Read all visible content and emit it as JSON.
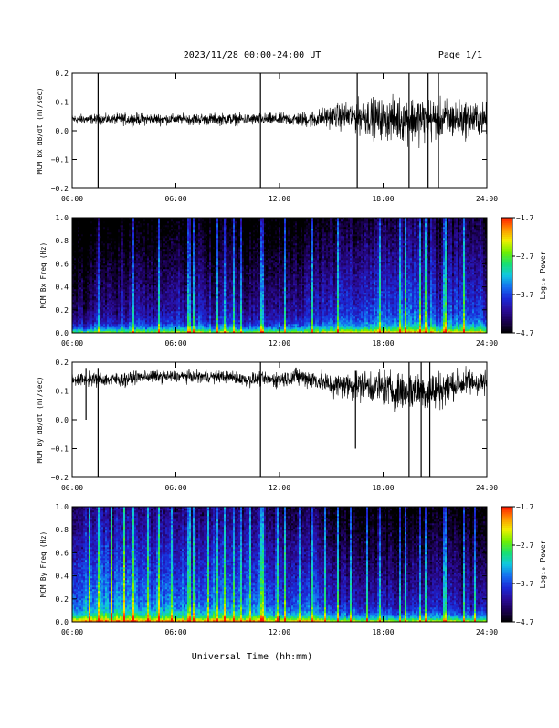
{
  "header": {
    "date_range": "2023/11/28  00:00-24:00 UT",
    "page": "Page 1/1"
  },
  "colorbar_label": "Log₁₀ Power",
  "colorscale": [
    "#000000",
    "#1a0050",
    "#2a0c9a",
    "#1a2ad8",
    "#1470f0",
    "#10c8e0",
    "#18e070",
    "#70f000",
    "#f0f000",
    "#ff9000",
    "#ff1800"
  ],
  "trace_color": "#000000",
  "xlabel": "Universal Time (hh:mm)",
  "chart_data": [
    {
      "type": "line",
      "ylabel": "MCM Bx dB/dt (nT/sec)",
      "xlim": [
        0,
        24
      ],
      "ylim": [
        -0.2,
        0.2
      ],
      "xticks": [
        "00:00",
        "06:00",
        "12:00",
        "18:00",
        "24:00"
      ],
      "yticks": [
        "−0.2",
        "−0.1",
        "0.0",
        "0.1",
        "0.2"
      ],
      "series": [
        {
          "x": [
            0,
            1,
            2,
            3,
            4,
            5,
            6,
            7,
            8,
            9,
            10,
            11,
            12,
            13,
            14,
            15,
            16,
            17,
            18,
            19,
            20,
            21,
            22,
            23,
            24
          ],
          "mean": [
            0.04,
            0.04,
            0.04,
            0.04,
            0.04,
            0.04,
            0.04,
            0.04,
            0.04,
            0.04,
            0.04,
            0.04,
            0.04,
            0.04,
            0.04,
            0.05,
            0.05,
            0.05,
            0.04,
            0.04,
            0.04,
            0.04,
            0.04,
            0.04,
            0.04
          ],
          "amplitude": [
            0.025,
            0.025,
            0.025,
            0.03,
            0.03,
            0.03,
            0.025,
            0.03,
            0.03,
            0.03,
            0.03,
            0.03,
            0.03,
            0.035,
            0.045,
            0.055,
            0.075,
            0.095,
            0.1,
            0.11,
            0.12,
            0.11,
            0.1,
            0.09,
            0.08
          ],
          "spikes": [
            [
              1.5,
              -0.2,
              0.2
            ],
            [
              10.9,
              -0.2,
              0.2
            ],
            [
              16.5,
              -0.2,
              0.2
            ],
            [
              19.5,
              -0.2,
              0.2
            ],
            [
              20.6,
              -0.2,
              0.2
            ],
            [
              21.2,
              -0.2,
              0.2
            ]
          ]
        }
      ]
    },
    {
      "type": "heatmap",
      "ylabel": "MCM Bx Freq (Hz)",
      "xlim": [
        0,
        24
      ],
      "ylim": [
        0,
        1.0
      ],
      "xticks": [
        "00:00",
        "06:00",
        "12:00",
        "18:00",
        "24:00"
      ],
      "yticks": [
        "0.0",
        "0.2",
        "0.4",
        "0.6",
        "0.8",
        "1.0"
      ],
      "colorbar": {
        "min": -4.7,
        "max": -1.7,
        "ticks": [
          "−4.7",
          "−3.7",
          "−2.7",
          "−1.7"
        ]
      },
      "base_level": [
        -4.1,
        -4.1,
        -4.0,
        -4.0,
        -4.0,
        -3.9,
        -3.9,
        -3.9,
        -3.9,
        -3.9,
        -3.9,
        -3.9,
        -3.9,
        -3.9,
        -3.8,
        -3.7,
        -3.6,
        -3.6,
        -3.5,
        -3.5,
        -3.5,
        -3.6,
        -3.6,
        -3.6,
        -3.6
      ],
      "bright_lines": [
        1.5,
        3.5,
        5.0,
        6.7,
        6.8,
        7.0,
        8.3,
        8.8,
        9.3,
        9.7,
        10.9,
        11.0,
        12.3,
        13.9,
        15.3,
        17.8,
        18.9,
        19.2,
        20.1,
        20.4,
        21.5,
        21.6,
        22.6
      ]
    },
    {
      "type": "line",
      "ylabel": "MCM By dB/dt (nT/sec)",
      "xlim": [
        0,
        24
      ],
      "ylim": [
        -0.2,
        0.2
      ],
      "xticks": [
        "00:00",
        "06:00",
        "12:00",
        "18:00",
        "24:00"
      ],
      "yticks": [
        "−0.2",
        "−0.1",
        "0.0",
        "0.1",
        "0.2"
      ],
      "series": [
        {
          "x": [
            0,
            1,
            2,
            3,
            4,
            5,
            6,
            7,
            8,
            9,
            10,
            11,
            12,
            13,
            14,
            15,
            16,
            17,
            18,
            19,
            20,
            21,
            22,
            23,
            24
          ],
          "mean": [
            0.14,
            0.14,
            0.14,
            0.14,
            0.15,
            0.15,
            0.15,
            0.15,
            0.15,
            0.15,
            0.14,
            0.14,
            0.14,
            0.15,
            0.14,
            0.12,
            0.12,
            0.12,
            0.11,
            0.1,
            0.1,
            0.1,
            0.12,
            0.13,
            0.13
          ],
          "amplitude": [
            0.03,
            0.035,
            0.035,
            0.035,
            0.03,
            0.03,
            0.03,
            0.03,
            0.03,
            0.03,
            0.035,
            0.035,
            0.04,
            0.045,
            0.05,
            0.06,
            0.07,
            0.08,
            0.09,
            0.1,
            0.1,
            0.1,
            0.08,
            0.07,
            0.06
          ],
          "spikes": [
            [
              0.8,
              0.0,
              0.18
            ],
            [
              1.5,
              -0.2,
              0.18
            ],
            [
              10.9,
              -0.2,
              0.2
            ],
            [
              16.4,
              -0.1,
              0.17
            ],
            [
              19.5,
              -0.2,
              0.2
            ],
            [
              20.2,
              -0.2,
              0.2
            ],
            [
              20.7,
              -0.2,
              0.2
            ]
          ]
        }
      ]
    },
    {
      "type": "heatmap",
      "ylabel": "MCM By Freq (Hz)",
      "xlim": [
        0,
        24
      ],
      "ylim": [
        0,
        1.0
      ],
      "xticks": [
        "00:00",
        "06:00",
        "12:00",
        "18:00",
        "24:00"
      ],
      "yticks": [
        "0.0",
        "0.2",
        "0.4",
        "0.6",
        "0.8",
        "1.0"
      ],
      "colorbar": {
        "min": -4.7,
        "max": -1.7,
        "ticks": [
          "−4.7",
          "−3.7",
          "−2.7",
          "−1.7"
        ]
      },
      "base_level": [
        -3.3,
        -3.3,
        -3.3,
        -3.3,
        -3.3,
        -3.3,
        -3.4,
        -3.4,
        -3.4,
        -3.4,
        -3.4,
        -3.4,
        -3.5,
        -3.5,
        -3.6,
        -3.7,
        -3.8,
        -3.8,
        -3.9,
        -3.9,
        -3.9,
        -3.9,
        -3.9,
        -3.9,
        -3.9
      ],
      "bright_lines": [
        0.9,
        1.5,
        2.2,
        3.0,
        3.5,
        4.3,
        5.0,
        5.7,
        6.7,
        6.8,
        7.0,
        7.8,
        8.3,
        8.8,
        9.3,
        9.7,
        10.3,
        10.9,
        11.0,
        11.8,
        12.3,
        13.1,
        13.9,
        14.6,
        15.3,
        16.1,
        17.0,
        17.8,
        18.9,
        19.2,
        20.1,
        20.4,
        21.5,
        21.6,
        22.6,
        23.3
      ]
    }
  ]
}
